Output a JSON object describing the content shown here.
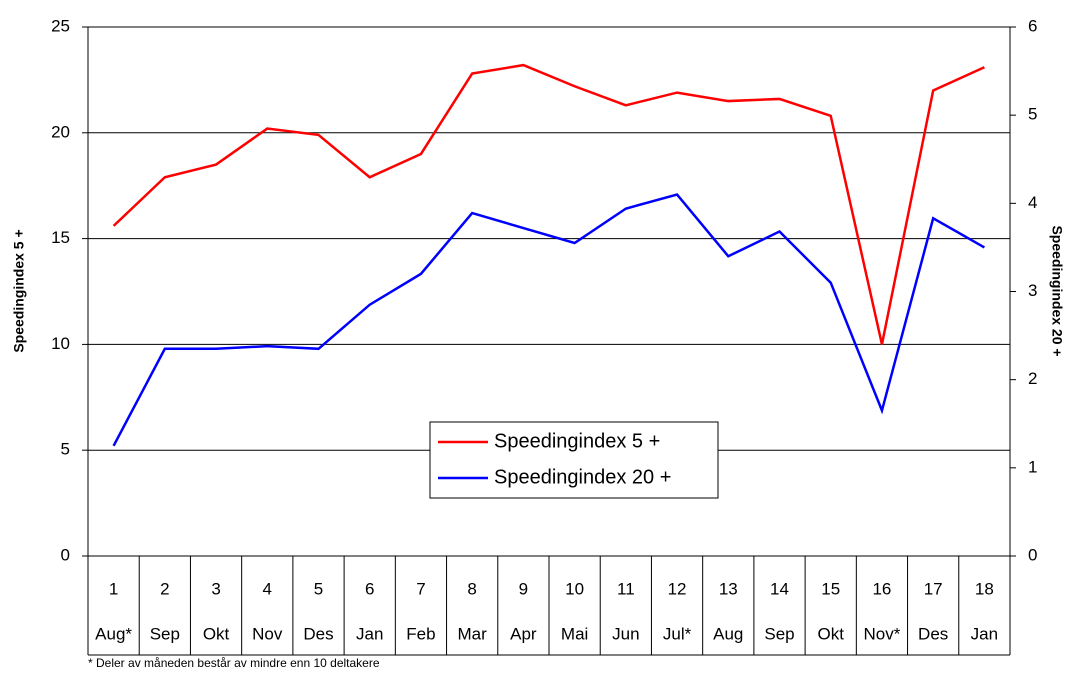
{
  "chart_data": {
    "type": "line",
    "categories": [
      "1",
      "2",
      "3",
      "4",
      "5",
      "6",
      "7",
      "8",
      "9",
      "10",
      "11",
      "12",
      "13",
      "14",
      "15",
      "16",
      "17",
      "18"
    ],
    "months": [
      "Aug*",
      "Sep",
      "Okt",
      "Nov",
      "Des",
      "Jan",
      "Feb",
      "Mar",
      "Apr",
      "Mai",
      "Jun",
      "Jul*",
      "Aug",
      "Sep",
      "Okt",
      "Nov*",
      "Des",
      "Jan"
    ],
    "ylabel": "Speedingindex 5 +",
    "y2label": "Speedingindex 20 +",
    "ylim": [
      0,
      25
    ],
    "yticks": [
      0,
      5,
      10,
      15,
      20,
      25
    ],
    "y2lim": [
      0,
      6
    ],
    "y2ticks": [
      0,
      1,
      2,
      3,
      4,
      5,
      6
    ],
    "grid": true,
    "legend": "center",
    "series": [
      {
        "name": "Speedingindex 5 +",
        "color": "#ff0000",
        "values": [
          15.6,
          17.9,
          18.5,
          20.2,
          19.9,
          17.9,
          19.0,
          22.8,
          23.2,
          22.2,
          21.3,
          21.9,
          21.5,
          21.6,
          20.8,
          10.0,
          22.0,
          23.1
        ]
      },
      {
        "name": "Speedingindex 20 +",
        "color": "#0000ff",
        "axis": "y2",
        "values": [
          1.25,
          2.35,
          2.35,
          2.38,
          2.35,
          2.85,
          3.2,
          3.89,
          3.72,
          3.55,
          3.94,
          4.1,
          3.4,
          3.68,
          3.1,
          1.65,
          3.83,
          3.5
        ]
      }
    ],
    "note": "* Deler av måneden består av mindre enn 10 deltakere"
  }
}
